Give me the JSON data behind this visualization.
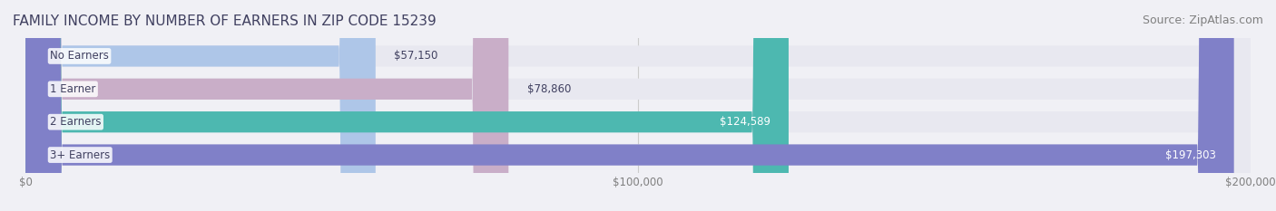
{
  "title": "FAMILY INCOME BY NUMBER OF EARNERS IN ZIP CODE 15239",
  "source": "Source: ZipAtlas.com",
  "categories": [
    "No Earners",
    "1 Earner",
    "2 Earners",
    "3+ Earners"
  ],
  "values": [
    57150,
    78860,
    124589,
    197303
  ],
  "bar_colors": [
    "#aec6e8",
    "#c9aec8",
    "#4db8b0",
    "#8080c8"
  ],
  "label_colors": [
    "#555577",
    "#555577",
    "#ffffff",
    "#ffffff"
  ],
  "xlim": [
    0,
    200000
  ],
  "xticks": [
    0,
    100000,
    200000
  ],
  "xtick_labels": [
    "$0",
    "$100,000",
    "$200,000"
  ],
  "background_color": "#f0f0f5",
  "bar_bg_color": "#e8e8f0",
  "title_color": "#404060",
  "source_color": "#808080",
  "title_fontsize": 11,
  "source_fontsize": 9,
  "label_fontsize": 8.5,
  "category_fontsize": 8.5,
  "xtick_fontsize": 8.5
}
